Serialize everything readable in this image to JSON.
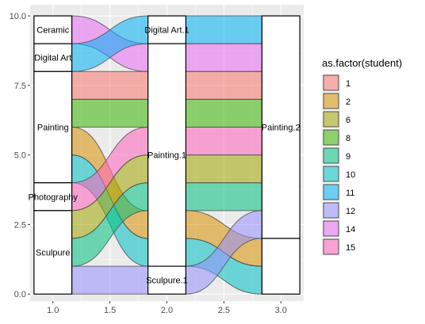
{
  "chart_data": {
    "type": "alluvial",
    "title": "",
    "xlabel": "",
    "ylabel": "",
    "xlim": [
      0.8,
      3.2
    ],
    "ylim": [
      -0.25,
      10.4
    ],
    "x_ticks": [
      1.0,
      1.5,
      2.0,
      2.5,
      3.0
    ],
    "x_tick_labels": [
      "1.0",
      "1.5",
      "2.0",
      "2.5",
      "3.0"
    ],
    "y_ticks": [
      0,
      2.5,
      5,
      7.5,
      10
    ],
    "y_tick_labels": [
      "0.0",
      "2.5",
      "5.0",
      "7.5",
      "10.0"
    ],
    "grid": true,
    "background": "#ebebeb",
    "legend": {
      "title": "as.factor(student)",
      "position": "right",
      "items": [
        {
          "label": "1",
          "color": "#F8766D"
        },
        {
          "label": "2",
          "color": "#D89000"
        },
        {
          "label": "6",
          "color": "#A3A500"
        },
        {
          "label": "8",
          "color": "#39B600"
        },
        {
          "label": "9",
          "color": "#00BF7D"
        },
        {
          "label": "10",
          "color": "#00BFC4"
        },
        {
          "label": "11",
          "color": "#00B0F6"
        },
        {
          "label": "12",
          "color": "#9590FF"
        },
        {
          "label": "14",
          "color": "#E76BF3"
        },
        {
          "label": "15",
          "color": "#FF62BC"
        }
      ]
    },
    "axes": [
      1,
      2,
      3
    ],
    "strata": [
      {
        "axis": 1,
        "label": "Ceramic",
        "ymin": 9,
        "ymax": 10
      },
      {
        "axis": 1,
        "label": "Digital Art",
        "ymin": 8,
        "ymax": 9
      },
      {
        "axis": 1,
        "label": "Painting",
        "ymin": 4,
        "ymax": 8
      },
      {
        "axis": 1,
        "label": "Photography",
        "ymin": 3,
        "ymax": 4
      },
      {
        "axis": 1,
        "label": "Sculpure",
        "ymin": 0,
        "ymax": 3
      },
      {
        "axis": 2,
        "label": "Digital Art.1",
        "ymin": 9,
        "ymax": 10
      },
      {
        "axis": 2,
        "label": "Painting.1",
        "ymin": 1,
        "ymax": 9
      },
      {
        "axis": 2,
        "label": "Sculpure.1",
        "ymin": 0,
        "ymax": 1
      },
      {
        "axis": 3,
        "label": "Painting.2",
        "ymin": 2,
        "ymax": 10
      },
      {
        "axis": 3,
        "label": "",
        "ymin": 0,
        "ymax": 2
      }
    ],
    "flows": [
      {
        "student": "14",
        "from_axis": 1,
        "y0": [
          9,
          10
        ],
        "to_axis": 2,
        "y1": [
          8,
          9
        ]
      },
      {
        "student": "11",
        "from_axis": 1,
        "y0": [
          8,
          9
        ],
        "to_axis": 2,
        "y1": [
          9,
          10
        ]
      },
      {
        "student": "1",
        "from_axis": 1,
        "y0": [
          7,
          8
        ],
        "to_axis": 2,
        "y1": [
          7,
          8
        ]
      },
      {
        "student": "8",
        "from_axis": 1,
        "y0": [
          6,
          7
        ],
        "to_axis": 2,
        "y1": [
          6,
          7
        ]
      },
      {
        "student": "2",
        "from_axis": 1,
        "y0": [
          5,
          6
        ],
        "to_axis": 2,
        "y1": [
          2,
          3
        ]
      },
      {
        "student": "10",
        "from_axis": 1,
        "y0": [
          4,
          5
        ],
        "to_axis": 2,
        "y1": [
          1,
          2
        ]
      },
      {
        "student": "15",
        "from_axis": 1,
        "y0": [
          3,
          4
        ],
        "to_axis": 2,
        "y1": [
          5,
          6
        ]
      },
      {
        "student": "6",
        "from_axis": 1,
        "y0": [
          2,
          3
        ],
        "to_axis": 2,
        "y1": [
          4,
          5
        ]
      },
      {
        "student": "9",
        "from_axis": 1,
        "y0": [
          1,
          2
        ],
        "to_axis": 2,
        "y1": [
          3,
          4
        ]
      },
      {
        "student": "12",
        "from_axis": 1,
        "y0": [
          0,
          1
        ],
        "to_axis": 2,
        "y1": [
          0,
          1
        ]
      },
      {
        "student": "11",
        "from_axis": 2,
        "y0": [
          9,
          10
        ],
        "to_axis": 3,
        "y1": [
          9,
          10
        ]
      },
      {
        "student": "14",
        "from_axis": 2,
        "y0": [
          8,
          9
        ],
        "to_axis": 3,
        "y1": [
          8,
          9
        ]
      },
      {
        "student": "1",
        "from_axis": 2,
        "y0": [
          7,
          8
        ],
        "to_axis": 3,
        "y1": [
          7,
          8
        ]
      },
      {
        "student": "8",
        "from_axis": 2,
        "y0": [
          6,
          7
        ],
        "to_axis": 3,
        "y1": [
          6,
          7
        ]
      },
      {
        "student": "15",
        "from_axis": 2,
        "y0": [
          5,
          6
        ],
        "to_axis": 3,
        "y1": [
          5,
          6
        ]
      },
      {
        "student": "6",
        "from_axis": 2,
        "y0": [
          4,
          5
        ],
        "to_axis": 3,
        "y1": [
          4,
          5
        ]
      },
      {
        "student": "9",
        "from_axis": 2,
        "y0": [
          3,
          4
        ],
        "to_axis": 3,
        "y1": [
          3,
          4
        ]
      },
      {
        "student": "2",
        "from_axis": 2,
        "y0": [
          2,
          3
        ],
        "to_axis": 3,
        "y1": [
          1,
          2
        ]
      },
      {
        "student": "10",
        "from_axis": 2,
        "y0": [
          1,
          2
        ],
        "to_axis": 3,
        "y1": [
          0,
          1
        ]
      },
      {
        "student": "12",
        "from_axis": 2,
        "y0": [
          0,
          1
        ],
        "to_axis": 3,
        "y1": [
          2,
          3
        ]
      }
    ]
  }
}
